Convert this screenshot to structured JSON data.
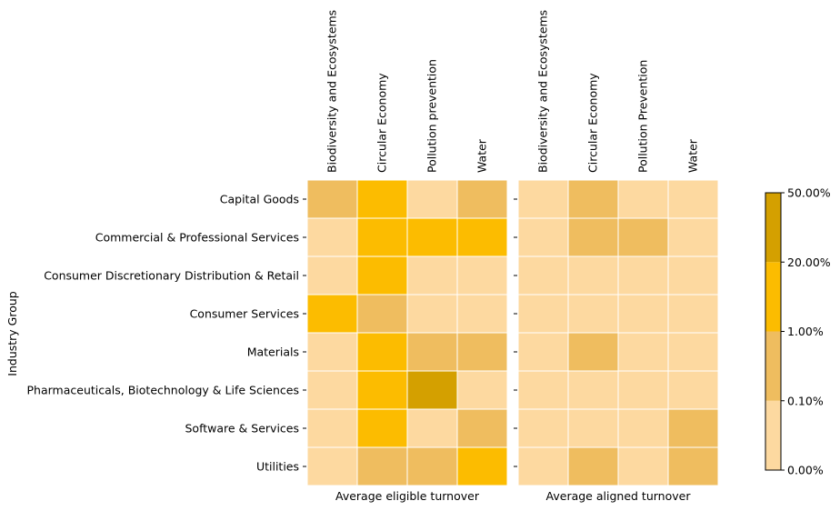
{
  "chart_data": {
    "type": "heatmap",
    "ylabel": "Industry Group",
    "rows": [
      "Capital Goods",
      "Commercial & Professional Services",
      "Consumer Discretionary Distribution & Retail",
      "Consumer Services",
      "Materials",
      "Pharmaceuticals, Biotechnology & Life Sciences",
      "Software & Services",
      "Utilities"
    ],
    "panels": [
      {
        "xlabel": "Average eligible turnover",
        "columns": [
          "Biodiversity and Ecosystems",
          "Circular Economy",
          "Pollution prevention",
          "Water"
        ],
        "bins": [
          [
            1,
            2,
            0,
            1
          ],
          [
            0,
            2,
            2,
            2
          ],
          [
            0,
            2,
            0,
            0
          ],
          [
            2,
            1,
            0,
            0
          ],
          [
            0,
            2,
            1,
            1
          ],
          [
            0,
            2,
            3,
            0
          ],
          [
            0,
            2,
            0,
            1
          ],
          [
            0,
            1,
            1,
            2
          ]
        ]
      },
      {
        "xlabel": "Average aligned turnover",
        "columns": [
          "Biodiversity and Ecosystems",
          "Circular Economy",
          "Pollution Prevention",
          "Water"
        ],
        "bins": [
          [
            0,
            1,
            0,
            0
          ],
          [
            0,
            1,
            1,
            0
          ],
          [
            0,
            0,
            0,
            0
          ],
          [
            0,
            0,
            0,
            0
          ],
          [
            0,
            1,
            0,
            0
          ],
          [
            0,
            0,
            0,
            0
          ],
          [
            0,
            0,
            0,
            1
          ],
          [
            0,
            1,
            0,
            1
          ]
        ]
      }
    ],
    "colorbar": {
      "ticks": [
        "0.00%",
        "0.10%",
        "1.00%",
        "20.00%",
        "50.00%"
      ],
      "bins": [
        {
          "range": [
            "0.00%",
            "0.10%"
          ],
          "color": "#fdd9a0"
        },
        {
          "range": [
            "0.10%",
            "1.00%"
          ],
          "color": "#efbd5f"
        },
        {
          "range": [
            "1.00%",
            "20.00%"
          ],
          "color": "#fcbc00"
        },
        {
          "range": [
            "20.00%",
            "50.00%"
          ],
          "color": "#d4a000"
        }
      ]
    }
  }
}
